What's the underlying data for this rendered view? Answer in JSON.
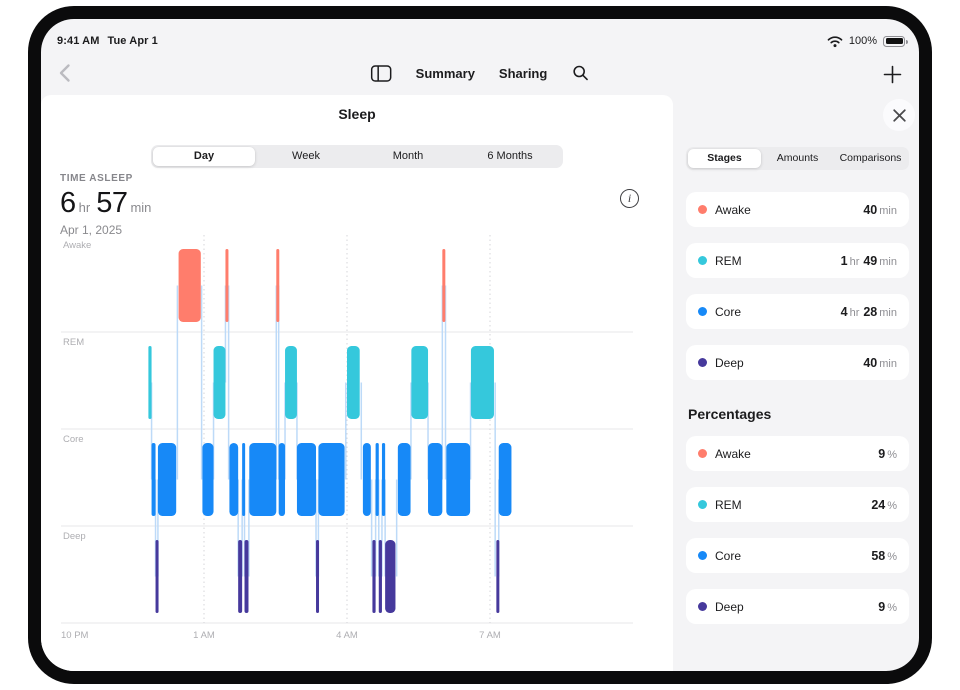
{
  "status_bar": {
    "time": "9:41 AM",
    "date": "Tue Apr 1",
    "battery_percent": "100%"
  },
  "nav": {
    "summary": "Summary",
    "sharing": "Sharing"
  },
  "sheet": {
    "title": "Sleep",
    "range_tabs": [
      {
        "label": "Day",
        "selected": true
      },
      {
        "label": "Week",
        "selected": false
      },
      {
        "label": "Month",
        "selected": false
      },
      {
        "label": "6 Months",
        "selected": false
      }
    ],
    "metric": {
      "label": "TIME ASLEEP",
      "hours": "6",
      "hours_unit": "hr",
      "minutes": "57",
      "minutes_unit": "min",
      "date": "Apr 1, 2025"
    }
  },
  "panel": {
    "tabs": [
      {
        "label": "Stages",
        "selected": true
      },
      {
        "label": "Amounts",
        "selected": false
      },
      {
        "label": "Comparisons",
        "selected": false
      }
    ],
    "durations": [
      {
        "stage": "Awake",
        "color": "#FF7D6C",
        "parts": [
          {
            "n": "40",
            "u": "min"
          }
        ]
      },
      {
        "stage": "REM",
        "color": "#35C8DC",
        "parts": [
          {
            "n": "1",
            "u": "hr"
          },
          {
            "n": "49",
            "u": "min"
          }
        ]
      },
      {
        "stage": "Core",
        "color": "#1789F7",
        "parts": [
          {
            "n": "4",
            "u": "hr"
          },
          {
            "n": "28",
            "u": "min"
          }
        ]
      },
      {
        "stage": "Deep",
        "color": "#46399C",
        "parts": [
          {
            "n": "40",
            "u": "min"
          }
        ]
      }
    ],
    "percent_heading": "Percentages",
    "percentages": [
      {
        "stage": "Awake",
        "color": "#FF7D6C",
        "n": "9",
        "u": "%"
      },
      {
        "stage": "REM",
        "color": "#35C8DC",
        "n": "24",
        "u": "%"
      },
      {
        "stage": "Core",
        "color": "#1789F7",
        "n": "58",
        "u": "%"
      },
      {
        "stage": "Deep",
        "color": "#46399C",
        "n": "9",
        "u": "%"
      }
    ]
  },
  "chart_data": {
    "type": "timeline",
    "subtype": "sleep-hypnogram",
    "title": "Sleep stages, Apr 1, 2025",
    "time_asleep": "6 hr 57 min",
    "stages": [
      {
        "name": "Awake",
        "color": "#FF7D6C"
      },
      {
        "name": "REM",
        "color": "#35C8DC"
      },
      {
        "name": "Core",
        "color": "#1789F7"
      },
      {
        "name": "Deep",
        "color": "#46399C"
      }
    ],
    "x_axis": {
      "total_hours": 12,
      "ticks": [
        {
          "label": "10 PM",
          "hour": 0
        },
        {
          "label": "1 AM",
          "hour": 3
        },
        {
          "label": "4 AM",
          "hour": 6
        },
        {
          "label": "7 AM",
          "hour": 9
        }
      ]
    },
    "segments_unit": "minutes_after_10pm",
    "segments": [
      {
        "stage": "REM",
        "start": 110,
        "end": 114
      },
      {
        "stage": "Core",
        "start": 114,
        "end": 119
      },
      {
        "stage": "Deep",
        "start": 119,
        "end": 122
      },
      {
        "stage": "Core",
        "start": 122,
        "end": 145
      },
      {
        "stage": "Awake",
        "start": 148,
        "end": 176
      },
      {
        "stage": "Core",
        "start": 178,
        "end": 192
      },
      {
        "stage": "REM",
        "start": 192,
        "end": 207
      },
      {
        "stage": "Awake",
        "start": 207,
        "end": 210
      },
      {
        "stage": "Core",
        "start": 212,
        "end": 223
      },
      {
        "stage": "Deep",
        "start": 223,
        "end": 228
      },
      {
        "stage": "Core",
        "start": 228,
        "end": 231
      },
      {
        "stage": "Deep",
        "start": 231,
        "end": 236
      },
      {
        "stage": "Core",
        "start": 237,
        "end": 271
      },
      {
        "stage": "Awake",
        "start": 271,
        "end": 274
      },
      {
        "stage": "Core",
        "start": 274,
        "end": 282
      },
      {
        "stage": "REM",
        "start": 282,
        "end": 297
      },
      {
        "stage": "Core",
        "start": 297,
        "end": 321
      },
      {
        "stage": "Deep",
        "start": 321,
        "end": 324
      },
      {
        "stage": "Core",
        "start": 324,
        "end": 357
      },
      {
        "stage": "REM",
        "start": 360,
        "end": 376
      },
      {
        "stage": "Core",
        "start": 380,
        "end": 390
      },
      {
        "stage": "Deep",
        "start": 392,
        "end": 396
      },
      {
        "stage": "Core",
        "start": 396,
        "end": 400
      },
      {
        "stage": "Deep",
        "start": 400,
        "end": 404
      },
      {
        "stage": "Core",
        "start": 404,
        "end": 408
      },
      {
        "stage": "Deep",
        "start": 408,
        "end": 421
      },
      {
        "stage": "Core",
        "start": 424,
        "end": 440
      },
      {
        "stage": "REM",
        "start": 441,
        "end": 462
      },
      {
        "stage": "Core",
        "start": 462,
        "end": 480
      },
      {
        "stage": "Awake",
        "start": 480,
        "end": 483
      },
      {
        "stage": "Core",
        "start": 485,
        "end": 515
      },
      {
        "stage": "REM",
        "start": 516,
        "end": 545
      },
      {
        "stage": "Deep",
        "start": 548,
        "end": 551
      },
      {
        "stage": "Core",
        "start": 551,
        "end": 567
      }
    ]
  }
}
